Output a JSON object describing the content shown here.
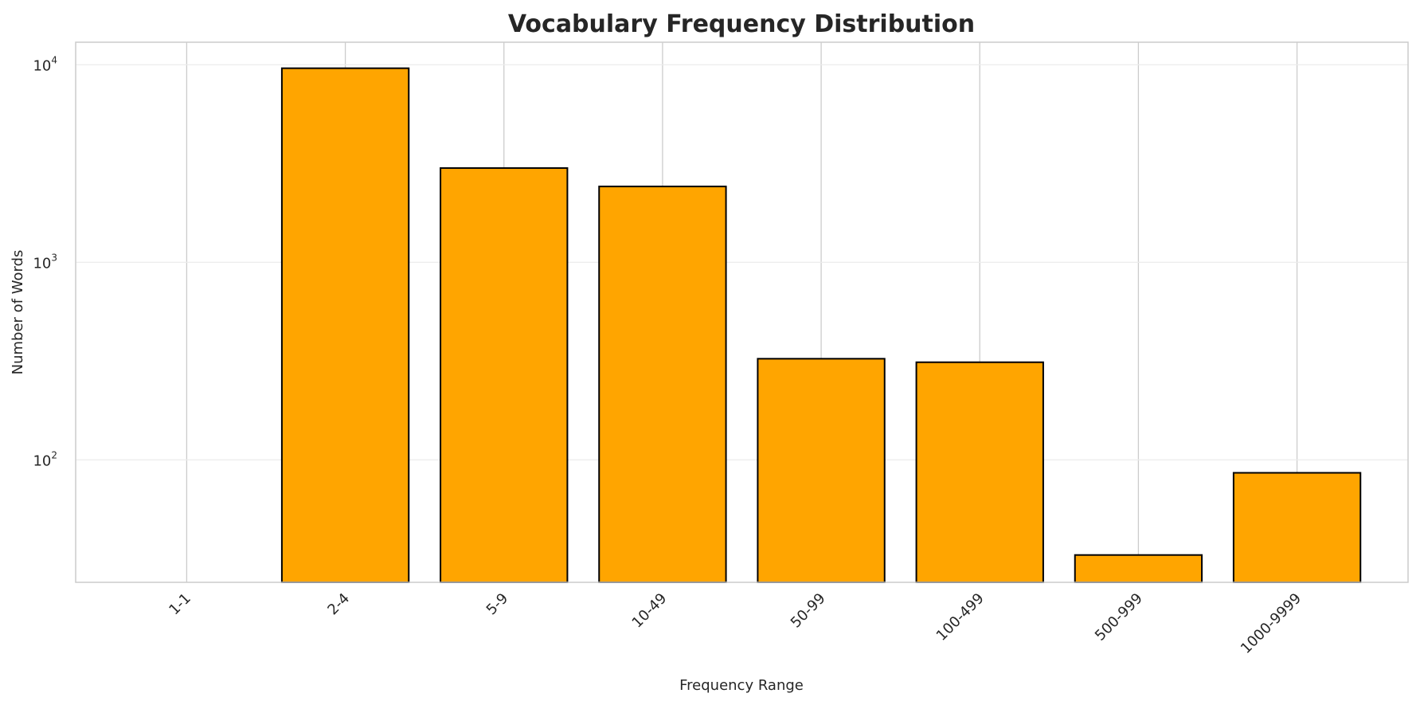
{
  "chart_data": {
    "type": "bar",
    "title": "Vocabulary Frequency Distribution",
    "xlabel": "Frequency Range",
    "ylabel": "Number of Words",
    "categories": [
      "1-1",
      "2-4",
      "5-9",
      "10-49",
      "50-99",
      "100-499",
      "500-999",
      "1000-9999"
    ],
    "values": [
      0,
      9600,
      3000,
      2420,
      325,
      312,
      33,
      86
    ],
    "yscale": "log",
    "ylim": [
      24,
      13000
    ],
    "yticks": [
      {
        "value": 100,
        "base": "10",
        "exp": "2"
      },
      {
        "value": 1000,
        "base": "10",
        "exp": "3"
      },
      {
        "value": 10000,
        "base": "10",
        "exp": "4"
      }
    ],
    "bar_color": "#ffa500",
    "bar_edge_color": "#000000",
    "grid": true,
    "legend": "none"
  }
}
